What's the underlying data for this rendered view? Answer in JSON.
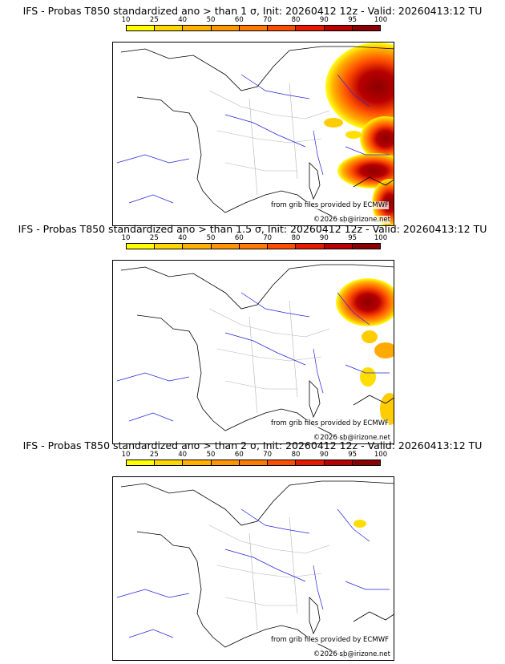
{
  "colorbar": {
    "ticks": [
      "10",
      "25",
      "40",
      "50",
      "60",
      "70",
      "80",
      "90",
      "95",
      "100"
    ],
    "colors": [
      "#ffff00",
      "#ffd700",
      "#ffb000",
      "#ff9500",
      "#ff7a00",
      "#ff4d00",
      "#e61a00",
      "#b80000",
      "#8b0000"
    ]
  },
  "map_colors": {
    "coast": "#000000",
    "rivers": "#2323dd",
    "admin": "#b4b4b4"
  },
  "panels": [
    {
      "title": "IFS - Probas T850  standardized ano > than 1 σ, Init: 20260412 12z - Valid: 20260413:12 TU",
      "credit_data": "from grib files provided by ECMWF",
      "credit_site": "©2026 sb@irizone.net",
      "highlighted_regions": [
        "east edge (Switzerland, Northern Italy, Corsica east)"
      ]
    },
    {
      "title": "IFS - Probas T850  standardized ano > than 1.5 σ, Init: 20260412 12z - Valid: 20260413:12 TU",
      "credit_data": "from grib files provided by ECMWF",
      "credit_site": "©2026 sb@irizone.net",
      "highlighted_regions": [
        "north-east (Switzerland/Alps)",
        "south-east edge (Italy)"
      ]
    },
    {
      "title": "IFS - Probas T850  standardized ano > than 2 σ, Init: 20260412 12z - Valid: 20260413:12 TU",
      "credit_data": "from grib files provided by ECMWF",
      "credit_site": "©2026 sb@irizone.net",
      "highlighted_regions": [
        "small patch near Swiss Alps"
      ]
    }
  ]
}
